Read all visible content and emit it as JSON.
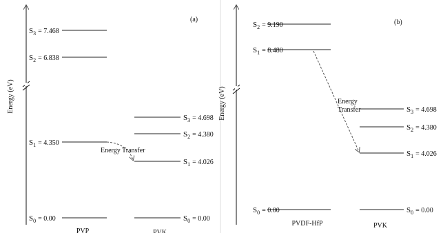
{
  "panels": [
    {
      "tag": "(a)",
      "axis_label": "Energy (eV)",
      "transfer_label": "Energy Transfer",
      "materials": [
        "PVP",
        "PVK"
      ],
      "left_levels": [
        {
          "state": "S",
          "sub": "3",
          "value": "= 7.468"
        },
        {
          "state": "S",
          "sub": "2",
          "value": "= 6.838"
        },
        {
          "state": "S",
          "sub": "1",
          "value": "= 4.350"
        },
        {
          "state": "S",
          "sub": "0",
          "value": "= 0.00"
        }
      ],
      "right_levels": [
        {
          "state": "S",
          "sub": "3",
          "value": "= 4.698"
        },
        {
          "state": "S",
          "sub": "2",
          "value": "= 4.380"
        },
        {
          "state": "S",
          "sub": "1",
          "value": "= 4.026"
        },
        {
          "state": "S",
          "sub": "0",
          "value": "= 0.00"
        }
      ]
    },
    {
      "tag": "(b)",
      "axis_label": "Energy (eV)",
      "transfer_label": "Energy Transfer",
      "materials": [
        "PVDF-HfP",
        "PVK"
      ],
      "left_levels": [
        {
          "state": "S",
          "sub": "2",
          "value": "= 9.190"
        },
        {
          "state": "S",
          "sub": "1",
          "value": "= 8.480"
        },
        {
          "state": "S",
          "sub": "0",
          "value": "= 0.00"
        }
      ],
      "right_levels": [
        {
          "state": "S",
          "sub": "3",
          "value": "= 4.698"
        },
        {
          "state": "S",
          "sub": "2",
          "value": "= 4.380"
        },
        {
          "state": "S",
          "sub": "1",
          "value": "= 4.026"
        },
        {
          "state": "S",
          "sub": "0",
          "value": "= 0.00"
        }
      ]
    }
  ]
}
